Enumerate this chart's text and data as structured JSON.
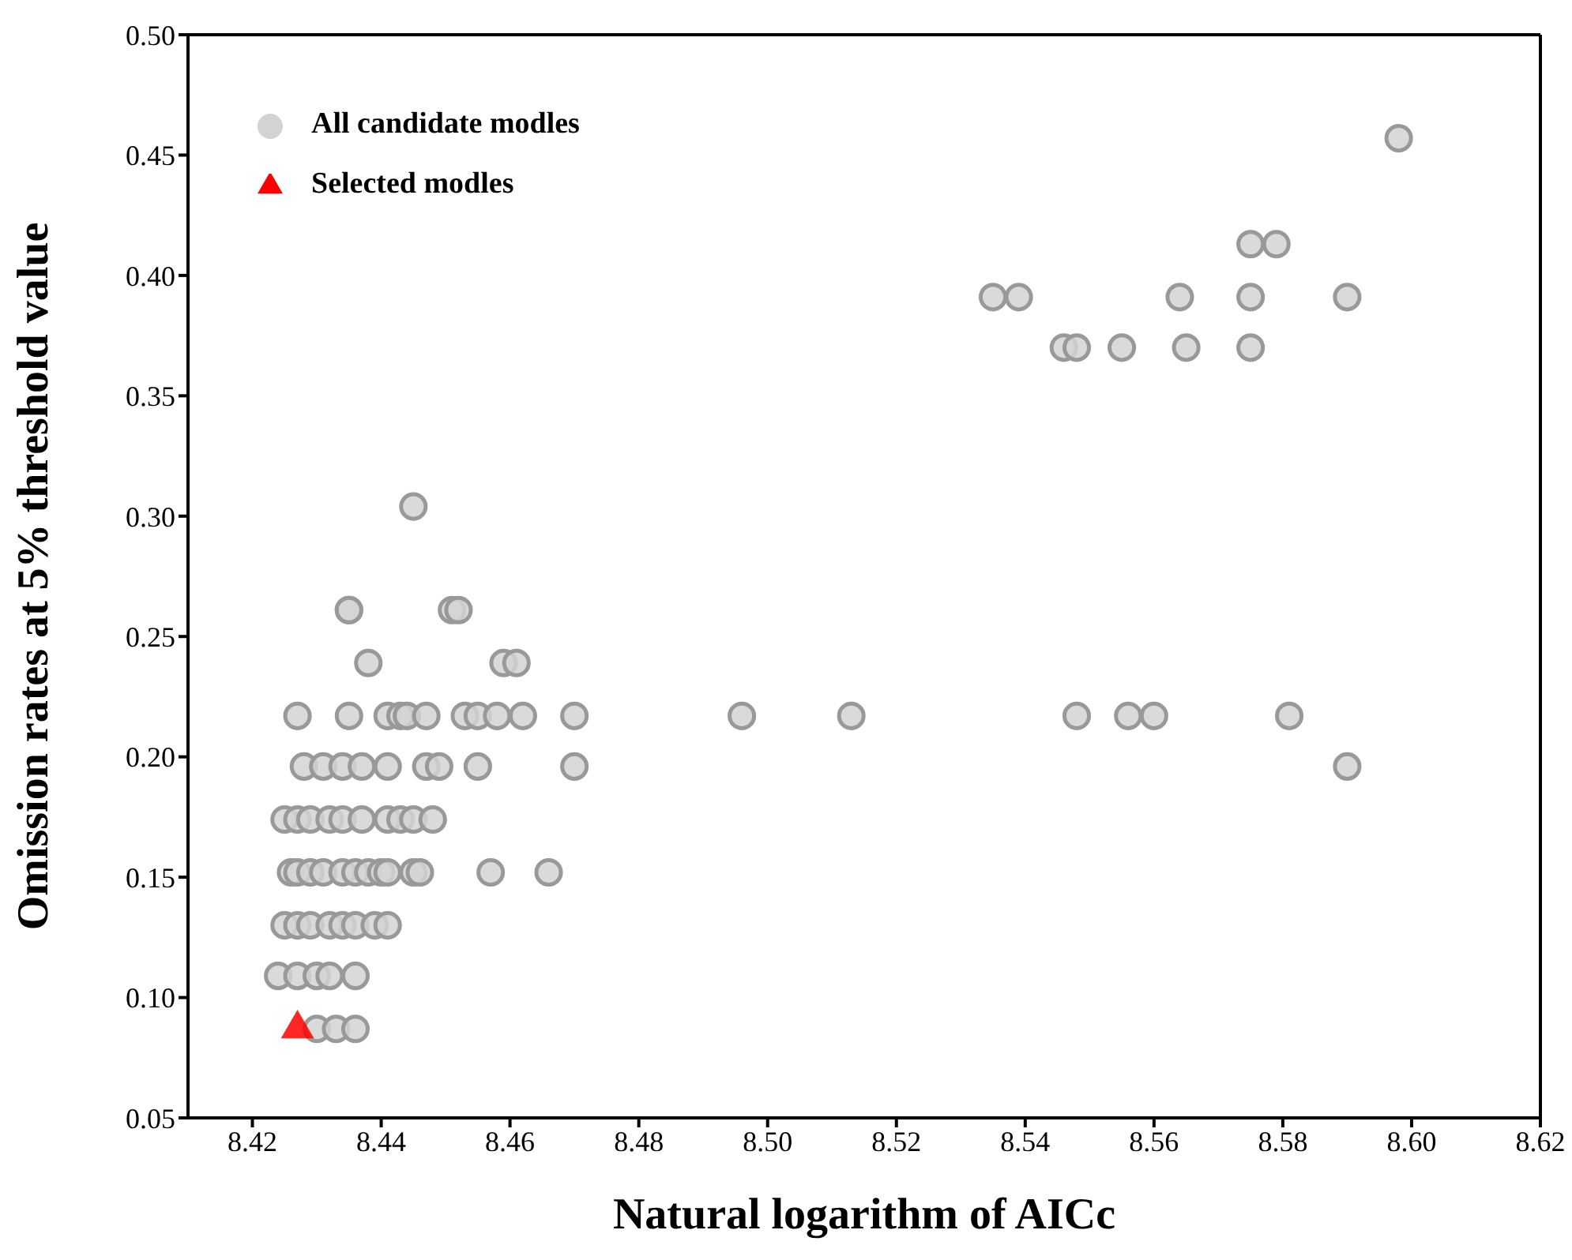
{
  "chart_data": {
    "type": "scatter",
    "xlabel": "Natural logarithm of AICc",
    "ylabel": "Omission rates at 5% threshold value",
    "xlim": [
      8.41,
      8.62
    ],
    "ylim": [
      0.05,
      0.5
    ],
    "xticks": [
      8.42,
      8.44,
      8.46,
      8.48,
      {
        "value": 8.5,
        "label": "8.50"
      },
      8.52,
      8.54,
      8.56,
      8.58,
      {
        "value": 8.6,
        "label": "8.60"
      },
      8.62
    ],
    "yticks": [
      0.05,
      {
        "value": 0.1,
        "label": "0.10"
      },
      0.15,
      {
        "value": 0.2,
        "label": "0.20"
      },
      0.25,
      {
        "value": 0.3,
        "label": "0.30"
      },
      0.35,
      {
        "value": 0.4,
        "label": "0.40"
      },
      0.45,
      {
        "value": 0.5,
        "label": "0.50"
      }
    ],
    "legend": "top left",
    "series": [
      {
        "name": "All candidate modles",
        "color": "#d3d3d3",
        "marker": "circle",
        "x": [
          8.445,
          8.435,
          8.435,
          8.451,
          8.452,
          8.438,
          8.459,
          8.461,
          8.427,
          8.435,
          8.441,
          8.443,
          8.444,
          8.447,
          8.453,
          8.455,
          8.458,
          8.462,
          8.47,
          8.496,
          8.513,
          8.548,
          8.556,
          8.56,
          8.581,
          8.428,
          8.431,
          8.434,
          8.437,
          8.441,
          8.447,
          8.449,
          8.455,
          8.47,
          8.59,
          8.425,
          8.427,
          8.429,
          8.432,
          8.434,
          8.437,
          8.441,
          8.443,
          8.445,
          8.448,
          8.426,
          8.427,
          8.429,
          8.431,
          8.434,
          8.436,
          8.438,
          8.44,
          8.441,
          8.445,
          8.446,
          8.457,
          8.466,
          8.425,
          8.427,
          8.429,
          8.432,
          8.434,
          8.436,
          8.439,
          8.441,
          8.424,
          8.427,
          8.43,
          8.432,
          8.436,
          8.43,
          8.433,
          8.436,
          8.598,
          8.575,
          8.579,
          8.535,
          8.539,
          8.564,
          8.575,
          8.59,
          8.546,
          8.548,
          8.555,
          8.565,
          8.575
        ],
        "values": [
          0.304,
          0.261,
          0.261,
          0.261,
          0.261,
          0.239,
          0.239,
          0.239,
          0.217,
          0.217,
          0.217,
          0.217,
          0.217,
          0.217,
          0.217,
          0.217,
          0.217,
          0.217,
          0.217,
          0.217,
          0.217,
          0.217,
          0.217,
          0.217,
          0.217,
          0.196,
          0.196,
          0.196,
          0.196,
          0.196,
          0.196,
          0.196,
          0.196,
          0.196,
          0.196,
          0.174,
          0.174,
          0.174,
          0.174,
          0.174,
          0.174,
          0.174,
          0.174,
          0.174,
          0.174,
          0.152,
          0.152,
          0.152,
          0.152,
          0.152,
          0.152,
          0.152,
          0.152,
          0.152,
          0.152,
          0.152,
          0.152,
          0.152,
          0.13,
          0.13,
          0.13,
          0.13,
          0.13,
          0.13,
          0.13,
          0.13,
          0.109,
          0.109,
          0.109,
          0.109,
          0.109,
          0.087,
          0.087,
          0.087,
          0.457,
          0.413,
          0.413,
          0.391,
          0.391,
          0.391,
          0.391,
          0.391,
          0.37,
          0.37,
          0.37,
          0.37,
          0.37
        ]
      },
      {
        "name": "Selected modles",
        "color": "#ff0000",
        "marker": "triangle",
        "x": [
          8.427
        ],
        "values": [
          0.087
        ]
      }
    ]
  }
}
